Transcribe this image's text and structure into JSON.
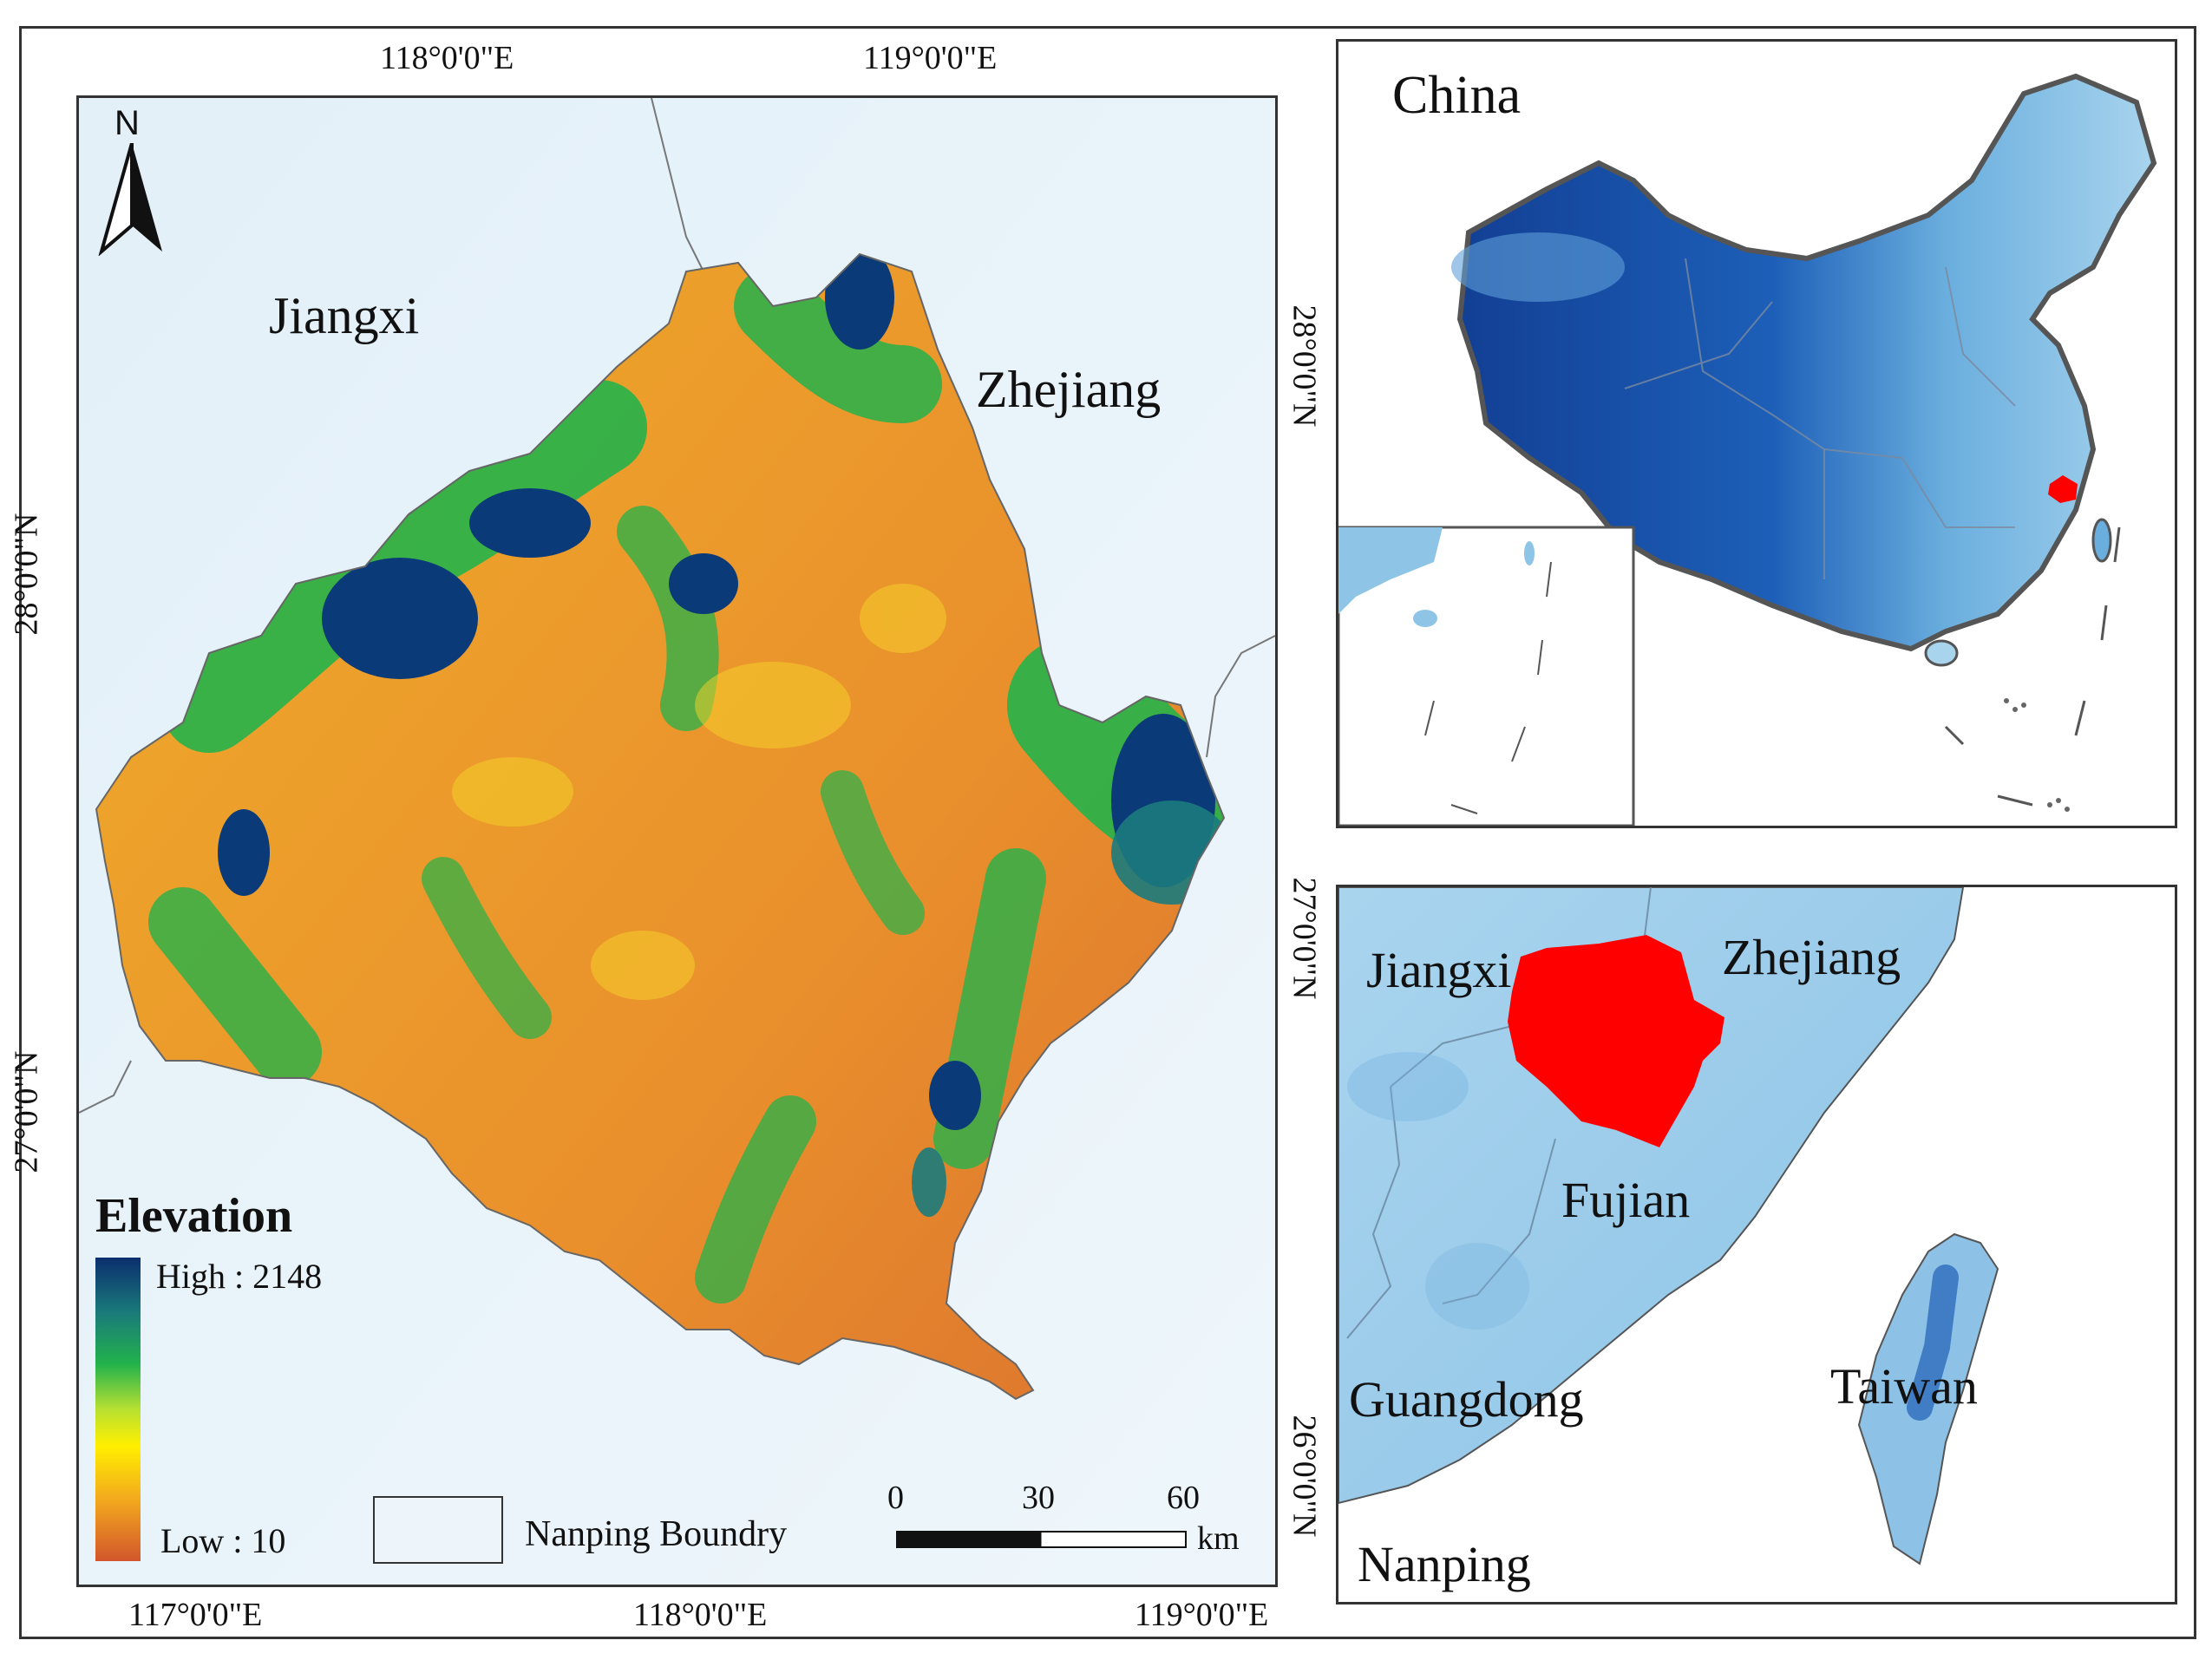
{
  "main_map": {
    "top_ticks": [
      "118°0'0\"E",
      "119°0'0\"E"
    ],
    "bottom_ticks": [
      "117°0'0\"E",
      "118°0'0\"E",
      "119°0'0\"E"
    ],
    "left_ticks": [
      "28°0'0\"N",
      "27°0'0\"N"
    ],
    "right_ticks": [
      "28°0'0\"N",
      "27°0'0\"N",
      "26°0'0\"N"
    ],
    "north_label": "N",
    "province_labels": {
      "west": "Jiangxi",
      "east": "Zhejiang"
    },
    "legend": {
      "title": "Elevation",
      "high_label": "High : 2148",
      "low_label": "Low : 10",
      "high_value": 2148,
      "low_value": 10,
      "colors": [
        "#0b2e6e",
        "#1a7a7a",
        "#22b24c",
        "#b7e032",
        "#ffef00",
        "#f2a81e",
        "#d2562c"
      ],
      "boundary_label": "Nanping Boundry"
    },
    "scale_bar": {
      "ticks": [
        "0",
        "30",
        "60"
      ],
      "unit": "km"
    }
  },
  "china_inset": {
    "title": "China",
    "highlight_color": "#ff0000"
  },
  "region_inset": {
    "labels": {
      "jiangxi": "Jiangxi",
      "zhejiang": "Zhejiang",
      "fujian": "Fujian",
      "guangdong": "Guangdong",
      "taiwan": "Taiwan",
      "nanping": "Nanping"
    },
    "highlight_color": "#ff0000"
  }
}
